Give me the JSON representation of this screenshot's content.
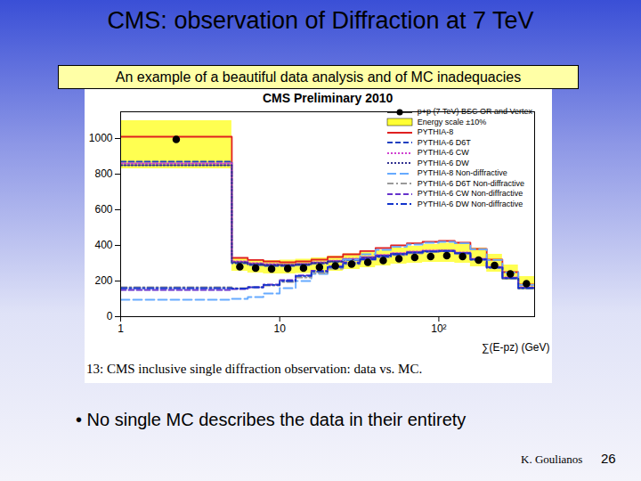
{
  "slide": {
    "title": "CMS: observation of Diffraction at 7 TeV",
    "subtitle": "An example of a beautiful data analysis and of MC inadequacies",
    "caption": "13: CMS inclusive single diffraction observation: data vs. MC.",
    "bullet": "• No single MC describes the data in their entirety",
    "author": "K. Goulianos",
    "page": 26
  },
  "chart_data": {
    "type": "histogram",
    "title": "CMS Preliminary 2010",
    "xlabel": "∑(E-pz) (GeV)",
    "log": "x",
    "grid": false,
    "legend": "top-right",
    "xlim": [
      1,
      400
    ],
    "xticks": [
      1,
      10,
      {
        "value": 100,
        "label": "10²"
      }
    ],
    "ylim": [
      0,
      1150
    ],
    "yticks": [
      0,
      200,
      400,
      600,
      800,
      1000
    ],
    "bins": [
      1,
      5,
      6.3,
      7.9,
      10,
      12.6,
      15.8,
      20,
      25,
      32,
      40,
      50,
      63,
      79,
      100,
      126,
      158,
      200,
      251,
      316,
      400
    ],
    "series": [
      {
        "name": "p+p (7 TeV) BSC OR and Vertex",
        "type": "scatter",
        "marker": "circle",
        "color": "#000000",
        "values": [
          995,
          280,
          272,
          268,
          270,
          272,
          278,
          285,
          295,
          305,
          315,
          325,
          332,
          338,
          342,
          338,
          318,
          288,
          240,
          185
        ]
      },
      {
        "name": "Energy scale ±10%",
        "type": "band",
        "color": "#ffff33",
        "low": [
          830,
          255,
          245,
          240,
          240,
          242,
          248,
          255,
          265,
          275,
          285,
          295,
          300,
          305,
          305,
          300,
          280,
          250,
          205,
          150
        ],
        "high": [
          1100,
          330,
          320,
          315,
          318,
          322,
          330,
          340,
          352,
          362,
          372,
          385,
          395,
          405,
          412,
          408,
          385,
          350,
          290,
          225
        ]
      },
      {
        "name": "PYTHIA-8",
        "type": "step",
        "line_style": "solid",
        "color": "#e02020",
        "values": [
          1010,
          330,
          318,
          310,
          305,
          310,
          320,
          335,
          350,
          368,
          385,
          400,
          412,
          420,
          425,
          415,
          380,
          320,
          250,
          180
        ]
      },
      {
        "name": "PYTHIA-6 D6T",
        "type": "step",
        "line_style": "dashed",
        "color": "#2040c0",
        "values": [
          870,
          300,
          290,
          285,
          285,
          290,
          298,
          308,
          318,
          330,
          340,
          350,
          358,
          365,
          368,
          355,
          320,
          275,
          215,
          160
        ]
      },
      {
        "name": "PYTHIA-6 CW",
        "type": "step",
        "line_style": "dotted",
        "color": "#d040d0",
        "values": [
          860,
          310,
          300,
          295,
          292,
          297,
          305,
          314,
          325,
          336,
          347,
          357,
          365,
          372,
          372,
          360,
          325,
          280,
          220,
          165
        ]
      },
      {
        "name": "PYTHIA-6 DW",
        "type": "step",
        "line_style": "dotted",
        "color": "#303090",
        "values": [
          850,
          305,
          295,
          290,
          290,
          294,
          302,
          310,
          320,
          332,
          343,
          353,
          360,
          368,
          370,
          357,
          322,
          277,
          218,
          162
        ]
      },
      {
        "name": "PYTHIA-8 Non-diffractive",
        "type": "step",
        "line_style": "longdash",
        "color": "#66aaff",
        "values": [
          95,
          100,
          110,
          130,
          160,
          200,
          240,
          280,
          320,
          350,
          375,
          392,
          405,
          415,
          420,
          412,
          378,
          318,
          248,
          178
        ]
      },
      {
        "name": "PYTHIA-6 D6T Non-diffractive",
        "type": "step",
        "line_style": "dashdot",
        "color": "#999999",
        "values": [
          165,
          160,
          165,
          175,
          195,
          220,
          245,
          270,
          295,
          318,
          332,
          345,
          355,
          362,
          366,
          353,
          318,
          273,
          213,
          158
        ]
      },
      {
        "name": "PYTHIA-6 CW Non-diffractive",
        "type": "step",
        "line_style": "dashed",
        "color": "#6633cc",
        "values": [
          150,
          155,
          165,
          180,
          205,
          232,
          258,
          283,
          305,
          325,
          340,
          352,
          361,
          368,
          369,
          358,
          323,
          278,
          218,
          163
        ]
      },
      {
        "name": "PYTHIA-6 DW Non-diffractive",
        "type": "step",
        "line_style": "dashdot",
        "color": "#1133cc",
        "values": [
          160,
          158,
          165,
          178,
          200,
          228,
          253,
          278,
          300,
          322,
          338,
          350,
          359,
          366,
          368,
          356,
          321,
          276,
          216,
          160
        ]
      }
    ]
  }
}
